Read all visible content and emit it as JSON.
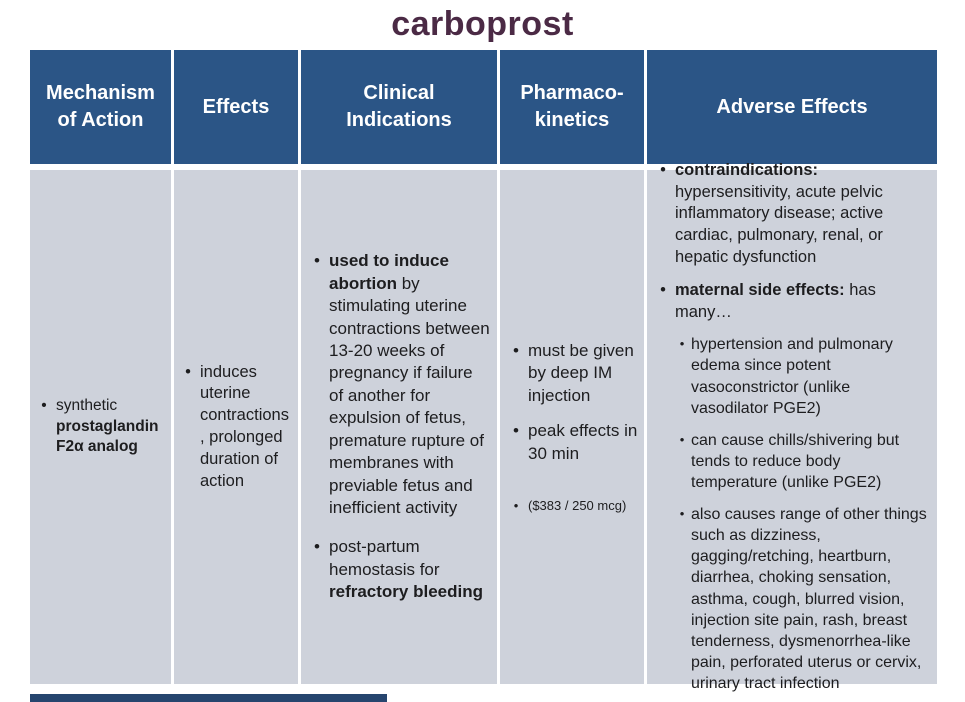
{
  "title": "carboprost",
  "colors": {
    "header_bg": "#2B5586",
    "body_bg": "#CED2DB",
    "title_color": "#4B2A45",
    "accent_bar": "#26456E",
    "body_text": "#1D1D1F"
  },
  "table": {
    "columns": [
      {
        "header": "Mechanism\nof Action",
        "items": [
          {
            "level": 1,
            "segments": [
              {
                "t": "synthetic "
              },
              {
                "t": "prostaglandin F2α analog",
                "b": true
              }
            ]
          }
        ]
      },
      {
        "header": "Effects",
        "items": [
          {
            "level": 1,
            "segments": [
              {
                "t": "induces uterine contractions , prolonged duration of action"
              }
            ]
          }
        ]
      },
      {
        "header": "Clinical\nIndications",
        "items": [
          {
            "level": 1,
            "segments": [
              {
                "t": "used to induce abortion",
                "b": true
              },
              {
                "t": " by stimulating uterine contractions between 13-20 weeks of pregnancy if failure of another for expulsion of fetus, premature rupture of membranes with previable fetus and inefficient activity"
              }
            ]
          },
          {
            "level": 1,
            "segments": [
              {
                "t": "post-partum hemostasis for "
              },
              {
                "t": "refractory bleeding",
                "b": true
              }
            ]
          }
        ]
      },
      {
        "header": "Pharmaco-\nkinetics",
        "items": [
          {
            "level": 1,
            "segments": [
              {
                "t": "must be given by deep IM injection"
              }
            ]
          },
          {
            "level": 1,
            "segments": [
              {
                "t": "peak effects in 30 min"
              }
            ]
          },
          {
            "level": 1,
            "small": true,
            "segments": [
              {
                "t": "($383 / 250 mcg)"
              }
            ]
          }
        ]
      },
      {
        "header": "Adverse Effects",
        "items": [
          {
            "level": 1,
            "segments": [
              {
                "t": "contraindications:",
                "b": true
              },
              {
                "t": " hypersensitivity, acute pelvic inflammatory disease; active cardiac, pulmonary, renal, or hepatic dysfunction"
              }
            ]
          },
          {
            "level": 1,
            "segments": [
              {
                "t": "maternal side effects:",
                "b": true
              },
              {
                "t": " has many…"
              }
            ]
          },
          {
            "level": 2,
            "segments": [
              {
                "t": "hypertension and pulmonary edema since potent vasoconstrictor (unlike vasodilator PGE2)"
              }
            ]
          },
          {
            "level": 2,
            "segments": [
              {
                "t": "can cause chills/shivering but tends to reduce body temperature (unlike PGE2)"
              }
            ]
          },
          {
            "level": 2,
            "segments": [
              {
                "t": "also causes range of other things such as dizziness, gagging/retching, heartburn, diarrhea, choking sensation, asthma, cough, blurred vision, injection site pain, rash, breast tenderness, dysmenorrhea-like pain, perforated uterus or cervix, urinary tract infection"
              }
            ]
          }
        ]
      }
    ]
  }
}
